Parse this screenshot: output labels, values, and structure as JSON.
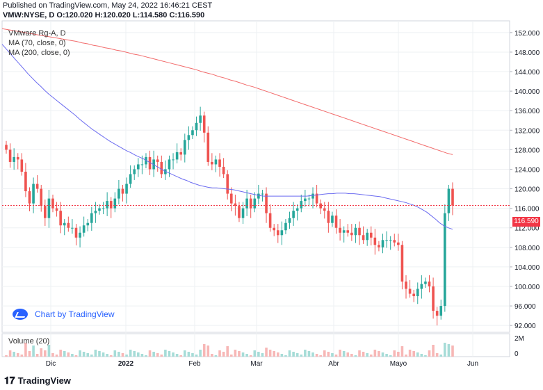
{
  "header": {
    "published": "Published on TradingView.com, May 24, 2022 16:46:21 CEST",
    "ohlc": "VMW:NYSE, D O:120.020 H:120.020 L:114.580 C:116.590"
  },
  "legend": {
    "symbol": "VMware Rg-A, D",
    "ma70": "MA (70, close, 0)",
    "ma200": "MA (200, close, 0)"
  },
  "volume_label": "Volume (20)",
  "chart_by": "Chart by TradingView",
  "footer_brand": "TradingView",
  "last_price": "116.590",
  "colors": {
    "up": "#26a69a",
    "down": "#ef5350",
    "ma70": "#6b6bf0",
    "ma200": "#f26b6b",
    "last": "#f23645",
    "grid": "#eef0f3"
  },
  "chart_data": {
    "type": "candlestick",
    "title": "VMware Rg-A, D",
    "x_ticks": [
      "Dic",
      "2022",
      "Feb",
      "Mar",
      "Abr",
      "Mayo",
      "Jun"
    ],
    "y_ticks": [
      "152.000",
      "148.000",
      "144.000",
      "140.000",
      "136.000",
      "132.000",
      "128.000",
      "124.000",
      "120.000",
      "116.000",
      "112.000",
      "108.000",
      "104.000",
      "100.000",
      "96.000",
      "92.000"
    ],
    "ylim": [
      90.6,
      154.4
    ],
    "volume_ticks": [
      "2M",
      "0"
    ],
    "candles_close": [
      128,
      125.5,
      126.5,
      126,
      123.5,
      119.5,
      117,
      121,
      120,
      116.5,
      114,
      118,
      116,
      115.5,
      112.5,
      113,
      112,
      112,
      110,
      111,
      112.5,
      113,
      115,
      115.5,
      116,
      116,
      117.5,
      116,
      118,
      120,
      119,
      121,
      123,
      124,
      125,
      125,
      126.5,
      124,
      126,
      125.5,
      123,
      124,
      126,
      126,
      127.5,
      127,
      130,
      131,
      132,
      133.5,
      135,
      131.5,
      125.5,
      125,
      126,
      124.5,
      123,
      119,
      117,
      116.5,
      114,
      116,
      118,
      116,
      118,
      119,
      119,
      115,
      112,
      111.5,
      110.5,
      111.5,
      113,
      114,
      115.5,
      116,
      117.5,
      118,
      118,
      119,
      117,
      116,
      115.5,
      113,
      114.5,
      112,
      111,
      111.5,
      111,
      110.5,
      112,
      110.5,
      109.5,
      111,
      110,
      108.5,
      108,
      109.5,
      109.5,
      109.5,
      109,
      108.5,
      101,
      99.5,
      98.5,
      98,
      99.5,
      100.5,
      101,
      100,
      95,
      94,
      96,
      115,
      120,
      116.59
    ],
    "ma70": [
      149.6,
      148.6,
      147.6,
      146.6,
      145.6,
      144.6,
      143.6,
      142.7,
      141.8,
      141.0,
      140.1,
      139.3,
      138.6,
      137.9,
      137.2,
      136.5,
      135.8,
      135.1,
      134.3,
      133.6,
      132.9,
      132.2,
      131.6,
      131.0,
      130.4,
      129.8,
      129.3,
      128.8,
      128.3,
      127.8,
      127.4,
      126.9,
      126.5,
      126.1,
      125.6,
      125.1,
      124.6,
      124.1,
      123.6,
      123.2,
      122.8,
      122.4,
      122.0,
      121.7,
      121.3,
      121.0,
      120.7,
      120.5,
      120.3,
      120.2,
      120.2,
      120.1,
      120.0,
      119.9,
      119.8,
      119.6,
      119.4,
      119.2,
      119.0,
      118.8,
      118.6,
      118.5,
      118.5,
      118.5,
      118.5,
      118.5,
      118.5,
      118.5,
      118.5,
      118.5,
      118.5,
      118.5,
      118.6,
      118.7,
      118.8,
      118.9,
      119.0,
      119.0,
      119.1,
      119.1,
      119.1,
      119.0,
      119.0,
      118.9,
      118.8,
      118.7,
      118.6,
      118.5,
      118.4,
      118.2,
      118.0,
      117.8,
      117.6,
      117.4,
      117.2,
      116.9,
      116.6,
      116.2,
      115.7,
      115.2,
      114.5,
      113.8,
      113.0,
      112.4,
      112.0,
      111.7
    ],
    "ma200": [
      152.8,
      152.6,
      152.4,
      152.2,
      152.0,
      151.8,
      151.6,
      151.4,
      151.2,
      151.0,
      150.8,
      150.6,
      150.4,
      150.2,
      149.9,
      149.7,
      149.4,
      149.2,
      148.9,
      148.7,
      148.4,
      148.2,
      147.9,
      147.6,
      147.4,
      147.1,
      146.8,
      146.5,
      146.2,
      145.9,
      145.6,
      145.3,
      145.0,
      144.7,
      144.4,
      144.0,
      143.7,
      143.4,
      143.0,
      142.7,
      142.3,
      142.0,
      141.6,
      141.2,
      140.9,
      140.5,
      140.1,
      139.7,
      139.3,
      138.9,
      138.5,
      138.1,
      137.7,
      137.3,
      136.9,
      136.5,
      136.1,
      135.7,
      135.3,
      134.9,
      134.5,
      134.1,
      133.7,
      133.3,
      132.9,
      132.5,
      132.1,
      131.7,
      131.3,
      130.9,
      130.5,
      130.1,
      129.7,
      129.3,
      128.9,
      128.5,
      128.1,
      127.7,
      127.3,
      127.0
    ]
  }
}
